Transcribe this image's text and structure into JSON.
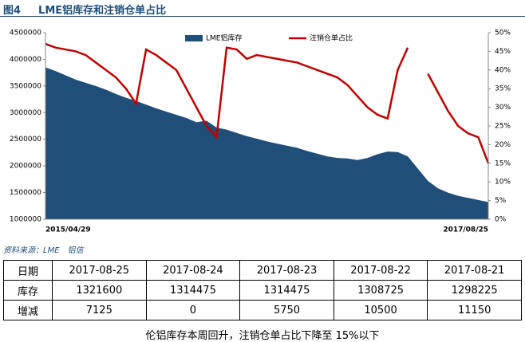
{
  "figure_label": "图4",
  "chart_data": {
    "type": "area-line",
    "title": "LME铝库存和注销仓单占比",
    "categories": [
      "2015/04/29",
      null,
      null,
      null,
      null,
      null,
      null,
      null,
      null,
      null,
      null,
      null,
      null,
      null,
      null,
      null,
      null,
      null,
      null,
      null,
      null,
      null,
      null,
      null,
      null,
      null,
      null,
      null,
      null,
      null,
      null,
      null,
      null,
      null,
      null,
      null,
      null,
      null,
      null,
      null,
      null,
      null,
      null,
      null,
      "2017/08/25"
    ],
    "series": [
      {
        "name": "LME铝库存",
        "color": "#1f4e79",
        "type": "area",
        "values": [
          3850000,
          3780000,
          3700000,
          3620000,
          3560000,
          3500000,
          3430000,
          3350000,
          3280000,
          3220000,
          3150000,
          3080000,
          3020000,
          2960000,
          2900000,
          2820000,
          2850000,
          2720000,
          2680000,
          2620000,
          2560000,
          2510000,
          2460000,
          2420000,
          2380000,
          2340000,
          2280000,
          2230000,
          2180000,
          2150000,
          2140000,
          2110000,
          2150000,
          2220000,
          2270000,
          2260000,
          2180000,
          1950000,
          1720000,
          1580000,
          1500000,
          1440000,
          1400000,
          1360000,
          1321600
        ]
      },
      {
        "name": "注销仓单占比",
        "color": "#c00000",
        "type": "line",
        "axis": "y2",
        "values": [
          47,
          46,
          45.5,
          45,
          44,
          42,
          40,
          38,
          35,
          31,
          45.5,
          44,
          42,
          40,
          35,
          30,
          25,
          22,
          46,
          45.5,
          43,
          44,
          43.5,
          43,
          42.5,
          42,
          41,
          40,
          39,
          38,
          36,
          33,
          30,
          28,
          27,
          40,
          46,
          null,
          39,
          34,
          29,
          25,
          23,
          22,
          15
        ]
      }
    ],
    "ylim": [
      1000000,
      4500000
    ],
    "yticks": [
      1000000,
      1500000,
      2000000,
      2500000,
      3000000,
      3500000,
      4000000,
      4500000
    ],
    "y2lim": [
      0,
      50
    ],
    "y2ticks": [
      {
        "value": 0,
        "label": "0%"
      },
      {
        "value": 5,
        "label": "5%"
      },
      {
        "value": 10,
        "label": "10%"
      },
      {
        "value": 15,
        "label": "15%"
      },
      {
        "value": 20,
        "label": "20%"
      },
      {
        "value": 25,
        "label": "25%"
      },
      {
        "value": 30,
        "label": "30%"
      },
      {
        "value": 35,
        "label": "35%"
      },
      {
        "value": 40,
        "label": "40%"
      },
      {
        "value": 45,
        "label": "45%"
      },
      {
        "value": 50,
        "label": "50%"
      }
    ],
    "legend": "top"
  },
  "source": "资料来源：LME　铝信",
  "table": {
    "rows": [
      [
        "日期",
        "2017-08-25",
        "2017-08-24",
        "2017-08-23",
        "2017-08-22",
        "2017-08-21"
      ],
      [
        "库存",
        "1321600",
        "1314475",
        "1314475",
        "1308725",
        "1298225"
      ],
      [
        "增减",
        "7125",
        "0",
        "5750",
        "10500",
        "11150"
      ]
    ]
  },
  "caption": "伦铝库存本周回升，注销仓单占比下降至 15%以下"
}
